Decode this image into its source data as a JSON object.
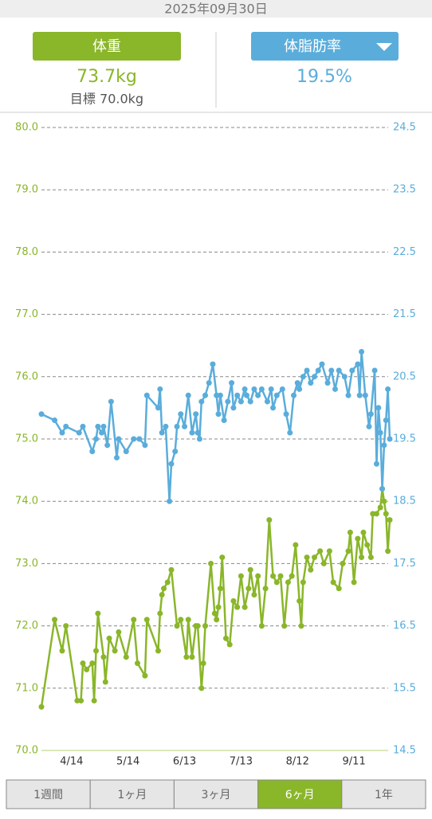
{
  "header": {
    "date": "2025年09月30日"
  },
  "weight": {
    "value": "73.7kg",
    "target": "目標 70.0kg"
  },
  "body_fat": {
    "value": "19.5%"
  },
  "chart_data": {
    "type": "line",
    "xlim": [
      88,
      273
    ],
    "xticks": [
      {
        "value": 104,
        "label": "4/14"
      },
      {
        "value": 134,
        "label": "5/14"
      },
      {
        "value": 164,
        "label": "6/13"
      },
      {
        "value": 194,
        "label": "7/13"
      },
      {
        "value": 224,
        "label": "8/12"
      },
      {
        "value": 254,
        "label": "9/11"
      }
    ],
    "ylim": [
      70,
      80
    ],
    "yticks": [
      {
        "value": 70,
        "label": "70.0"
      },
      {
        "value": 71,
        "label": "71.0"
      },
      {
        "value": 72,
        "label": "72.0"
      },
      {
        "value": 73,
        "label": "73.0"
      },
      {
        "value": 74,
        "label": "74.0"
      },
      {
        "value": 75,
        "label": "75.0"
      },
      {
        "value": 76,
        "label": "76.0"
      },
      {
        "value": 77,
        "label": "77.0"
      },
      {
        "value": 78,
        "label": "78.0"
      },
      {
        "value": 79,
        "label": "79.0"
      },
      {
        "value": 80,
        "label": "80.0"
      }
    ],
    "y2lim": [
      14.5,
      24.5
    ],
    "y2ticks": [
      14.5,
      15.5,
      16.5,
      17.5,
      18.5,
      19.5,
      20.5,
      21.5,
      22.5,
      23.5,
      24.5
    ],
    "grid": true,
    "series": [
      {
        "name": "体重",
        "color": "#8ab62a",
        "x": [
          88,
          95,
          99,
          101,
          107,
          109,
          110,
          112,
          115,
          116,
          117,
          118,
          121,
          122,
          124,
          127,
          129,
          133,
          137,
          139,
          143,
          144,
          150,
          151,
          152,
          153,
          155,
          157,
          160,
          162,
          165,
          166,
          168,
          170,
          171,
          173,
          174,
          175,
          178,
          180,
          181,
          182,
          183,
          184,
          186,
          188,
          190,
          192,
          194,
          196,
          198,
          199,
          201,
          203,
          205,
          207,
          209,
          211,
          213,
          215,
          217,
          219,
          221,
          223,
          225,
          226,
          227,
          229,
          231,
          233,
          236,
          238,
          241,
          243,
          246,
          248,
          251,
          252,
          254,
          256,
          258,
          259,
          261,
          263,
          264,
          266,
          268,
          269,
          270,
          271,
          272,
          273
        ],
        "values": [
          70.7,
          72.1,
          71.6,
          72.0,
          70.8,
          70.8,
          71.4,
          71.3,
          71.4,
          70.8,
          71.6,
          72.2,
          71.5,
          71.1,
          71.8,
          71.6,
          71.9,
          71.5,
          72.1,
          71.4,
          71.2,
          72.1,
          71.6,
          72.2,
          72.5,
          72.6,
          72.7,
          72.9,
          72.0,
          72.1,
          71.5,
          72.1,
          71.5,
          72.0,
          72.0,
          71.0,
          71.4,
          72.0,
          73.0,
          72.2,
          72.1,
          72.3,
          72.6,
          73.1,
          71.8,
          71.7,
          72.4,
          72.3,
          72.8,
          72.3,
          72.6,
          72.9,
          72.5,
          72.8,
          72.0,
          72.6,
          73.7,
          72.8,
          72.7,
          72.8,
          72.0,
          72.7,
          72.8,
          73.3,
          72.4,
          72.0,
          72.7,
          73.1,
          72.9,
          73.1,
          73.2,
          73.0,
          73.2,
          72.7,
          72.6,
          73.0,
          73.2,
          73.5,
          72.7,
          73.4,
          73.1,
          73.5,
          73.3,
          73.1,
          73.8,
          73.8,
          73.9,
          74.2,
          74.0,
          73.8,
          73.2,
          73.7
        ]
      },
      {
        "name": "体脂肪率",
        "color": "#5aaddb",
        "axis": "y2",
        "x": [
          88,
          95,
          99,
          101,
          108,
          110,
          115,
          117,
          118,
          120,
          121,
          123,
          125,
          128,
          129,
          133,
          137,
          140,
          143,
          144,
          150,
          151,
          152,
          154,
          156,
          157,
          159,
          160,
          162,
          164,
          166,
          168,
          170,
          171,
          172,
          173,
          175,
          177,
          179,
          181,
          182,
          183,
          185,
          187,
          189,
          190,
          192,
          194,
          196,
          197,
          199,
          201,
          203,
          205,
          208,
          210,
          211,
          213,
          216,
          218,
          220,
          222,
          224,
          225,
          227,
          229,
          231,
          233,
          235,
          237,
          240,
          242,
          244,
          246,
          249,
          251,
          253,
          256,
          257,
          258,
          260,
          262,
          263,
          265,
          266,
          267,
          268,
          269,
          270,
          271,
          272,
          273
        ],
        "values": [
          19.9,
          19.8,
          19.6,
          19.7,
          19.6,
          19.7,
          19.3,
          19.5,
          19.7,
          19.6,
          19.7,
          19.4,
          20.1,
          19.2,
          19.5,
          19.3,
          19.5,
          19.5,
          19.4,
          20.2,
          20.0,
          20.3,
          19.6,
          19.7,
          18.5,
          19.1,
          19.3,
          19.7,
          19.9,
          19.7,
          20.2,
          19.6,
          19.9,
          19.6,
          19.5,
          20.1,
          20.2,
          20.4,
          20.7,
          20.2,
          19.9,
          20.2,
          19.8,
          20.1,
          20.4,
          20.0,
          20.2,
          20.1,
          20.3,
          20.2,
          20.1,
          20.3,
          20.2,
          20.3,
          20.1,
          20.3,
          20.0,
          20.2,
          20.3,
          19.9,
          19.6,
          20.2,
          20.4,
          20.3,
          20.5,
          20.6,
          20.4,
          20.5,
          20.6,
          20.7,
          20.4,
          20.6,
          20.3,
          20.6,
          20.5,
          20.2,
          20.6,
          20.7,
          20.2,
          20.9,
          20.2,
          19.7,
          19.9,
          20.6,
          19.1,
          20.0,
          19.6,
          18.7,
          19.4,
          19.8,
          20.3,
          19.5
        ]
      }
    ]
  },
  "tabs": [
    "1週間",
    "1ヶ月",
    "3ヶ月",
    "6ヶ月",
    "1年"
  ],
  "active_tab": 3
}
